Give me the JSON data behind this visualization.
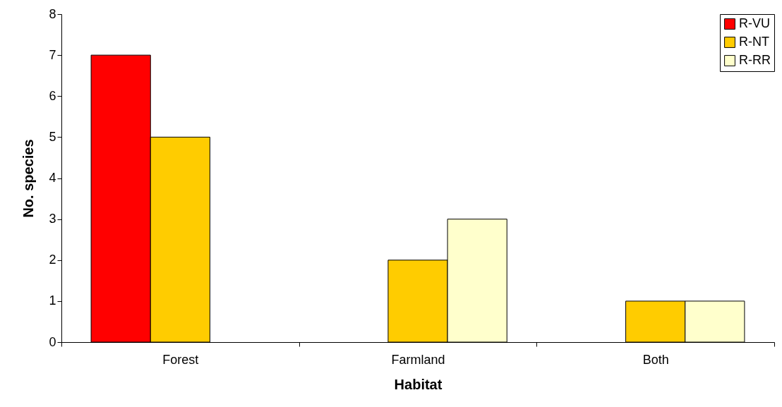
{
  "chart_data": {
    "type": "bar",
    "xlabel": "Habitat",
    "ylabel": "No. species",
    "categories": [
      "Forest",
      "Farmland",
      "Both"
    ],
    "series": [
      {
        "name": "R-VU",
        "color": "#ff0000",
        "values": [
          7,
          null,
          null
        ]
      },
      {
        "name": "R-NT",
        "color": "#ffcc00",
        "values": [
          5,
          2,
          1
        ]
      },
      {
        "name": "R-RR",
        "color": "#ffffcc",
        "values": [
          null,
          3,
          1
        ]
      }
    ],
    "ylim": [
      0,
      8
    ],
    "yticks": [
      0,
      1,
      2,
      3,
      4,
      5,
      6,
      7,
      8
    ],
    "legend": "top right"
  }
}
